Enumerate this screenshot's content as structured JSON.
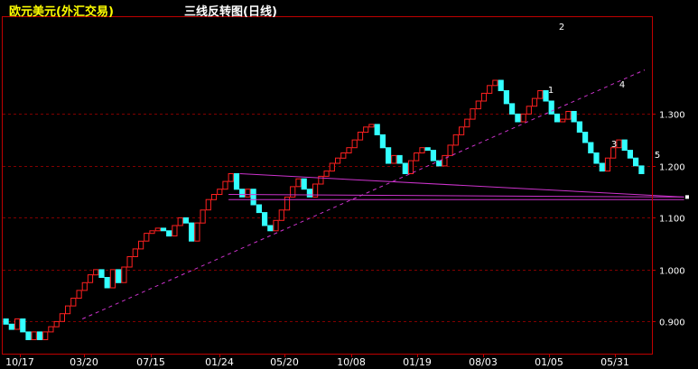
{
  "header": {
    "instrument": "欧元美元(外汇交易)",
    "chart_name": "三线反转图(日线)"
  },
  "colors": {
    "background": "#000000",
    "frame": "#c00000",
    "grid": "#800000",
    "up": "#ff2020",
    "down": "#33ffff",
    "axis_text": "#ffffff",
    "trendline": "#cc33cc",
    "title": "#ffff00"
  },
  "chart_data": {
    "type": "line",
    "style": "three-line-break",
    "title": "三线反转图(日线)",
    "ylim": [
      0.845,
      1.39
    ],
    "y_ticks": [
      "0.900",
      "1.000",
      "1.100",
      "1.200",
      "1.300"
    ],
    "x_ticks": [
      "10/17",
      "03/20",
      "07/15",
      "01/24",
      "05/20",
      "10/08",
      "01/19",
      "08/03",
      "01/05",
      "05/31"
    ],
    "grid": "horizontal dashed",
    "series": [
      {
        "values": [
          0.905,
          0.895,
          0.885,
          0.905,
          0.88,
          0.865,
          0.88,
          0.865,
          0.88,
          0.89,
          0.9,
          0.915,
          0.93,
          0.945,
          0.96,
          0.975,
          0.99,
          1.0,
          0.985,
          0.965,
          1.0,
          0.975,
          1.005,
          1.025,
          1.04,
          1.055,
          1.07,
          1.075,
          1.08,
          1.075,
          1.065,
          1.085,
          1.1,
          1.09,
          1.055,
          1.09,
          1.115,
          1.135,
          1.145,
          1.155,
          1.17,
          1.185,
          1.155,
          1.14,
          1.155,
          1.125,
          1.11,
          1.085,
          1.075,
          1.095,
          1.115,
          1.14,
          1.16,
          1.175,
          1.155,
          1.14,
          1.165,
          1.18,
          1.19,
          1.205,
          1.215,
          1.225,
          1.235,
          1.25,
          1.265,
          1.275,
          1.28,
          1.26,
          1.235,
          1.205,
          1.22,
          1.205,
          1.185,
          1.21,
          1.225,
          1.235,
          1.23,
          1.21,
          1.2,
          1.22,
          1.24,
          1.26,
          1.275,
          1.29,
          1.31,
          1.325,
          1.34,
          1.355,
          1.365,
          1.345,
          1.32,
          1.3,
          1.285,
          1.3,
          1.315,
          1.33,
          1.345,
          1.325,
          1.3,
          1.285,
          1.29,
          1.305,
          1.285,
          1.265,
          1.245,
          1.225,
          1.205,
          1.19,
          1.215,
          1.235,
          1.25,
          1.23,
          1.215,
          1.2,
          1.185
        ]
      }
    ],
    "annotations": [
      "1",
      "2",
      "3",
      "4",
      "5"
    ]
  }
}
